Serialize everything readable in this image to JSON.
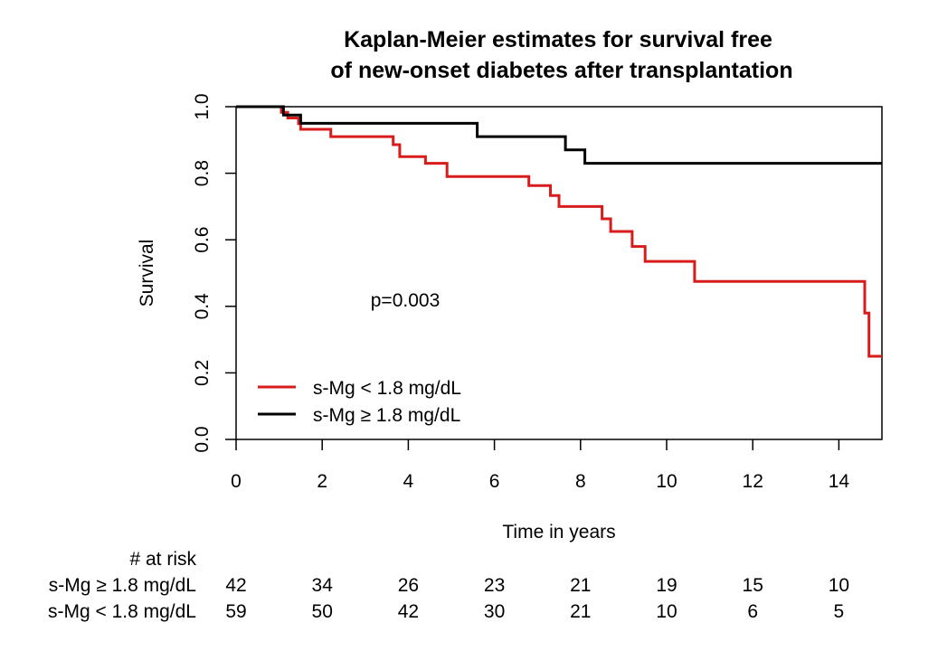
{
  "chart_data": {
    "type": "line",
    "subtype": "kaplan-meier step",
    "title_lines": [
      "Kaplan-Meier estimates for survival free",
      "of new-onset diabetes after transplantation"
    ],
    "xlabel": "Time in years",
    "ylabel": "Survival",
    "xlim": [
      0,
      15
    ],
    "ylim": [
      0,
      1
    ],
    "x_ticks": [
      0,
      2,
      4,
      6,
      8,
      10,
      12,
      14
    ],
    "y_ticks": [
      "0.0",
      "0.2",
      "0.4",
      "0.6",
      "0.8",
      "1.0"
    ],
    "grid": false,
    "legend_position": "bottom-left",
    "annotation": "p=0.003",
    "series": [
      {
        "name": "s-Mg < 1.8 mg/dL",
        "color": "#d81b1b",
        "points": [
          [
            0,
            1.0
          ],
          [
            1.05,
            1.0
          ],
          [
            1.05,
            0.983
          ],
          [
            1.2,
            0.983
          ],
          [
            1.2,
            0.966
          ],
          [
            1.45,
            0.966
          ],
          [
            1.45,
            0.949
          ],
          [
            1.5,
            0.949
          ],
          [
            1.5,
            0.932
          ],
          [
            2.2,
            0.932
          ],
          [
            2.2,
            0.91
          ],
          [
            3.65,
            0.91
          ],
          [
            3.65,
            0.886
          ],
          [
            3.8,
            0.886
          ],
          [
            3.8,
            0.85
          ],
          [
            4.4,
            0.85
          ],
          [
            4.4,
            0.83
          ],
          [
            4.9,
            0.83
          ],
          [
            4.9,
            0.79
          ],
          [
            6.8,
            0.79
          ],
          [
            6.8,
            0.763
          ],
          [
            7.3,
            0.763
          ],
          [
            7.3,
            0.733
          ],
          [
            7.5,
            0.733
          ],
          [
            7.5,
            0.7
          ],
          [
            8.5,
            0.7
          ],
          [
            8.5,
            0.663
          ],
          [
            8.7,
            0.663
          ],
          [
            8.7,
            0.625
          ],
          [
            9.2,
            0.625
          ],
          [
            9.2,
            0.58
          ],
          [
            9.5,
            0.58
          ],
          [
            9.5,
            0.535
          ],
          [
            10.65,
            0.535
          ],
          [
            10.65,
            0.475
          ],
          [
            14.6,
            0.475
          ],
          [
            14.6,
            0.38
          ],
          [
            14.7,
            0.38
          ],
          [
            14.7,
            0.25
          ],
          [
            15,
            0.25
          ]
        ]
      },
      {
        "name": "s-Mg ≥ 1.8 mg/dL",
        "color": "#000000",
        "points": [
          [
            0,
            1.0
          ],
          [
            1.1,
            1.0
          ],
          [
            1.1,
            0.975
          ],
          [
            1.5,
            0.975
          ],
          [
            1.5,
            0.95
          ],
          [
            5.6,
            0.95
          ],
          [
            5.6,
            0.91
          ],
          [
            7.65,
            0.91
          ],
          [
            7.65,
            0.87
          ],
          [
            8.1,
            0.87
          ],
          [
            8.1,
            0.83
          ],
          [
            15,
            0.83
          ]
        ]
      }
    ],
    "risk_table": {
      "header": "# at risk",
      "rows": [
        {
          "label": "s-Mg ≥ 1.8 mg/dL",
          "values": [
            42,
            34,
            26,
            23,
            21,
            19,
            15,
            10
          ]
        },
        {
          "label": "s-Mg < 1.8 mg/dL",
          "values": [
            59,
            50,
            42,
            30,
            21,
            10,
            6,
            5
          ]
        }
      ]
    }
  }
}
